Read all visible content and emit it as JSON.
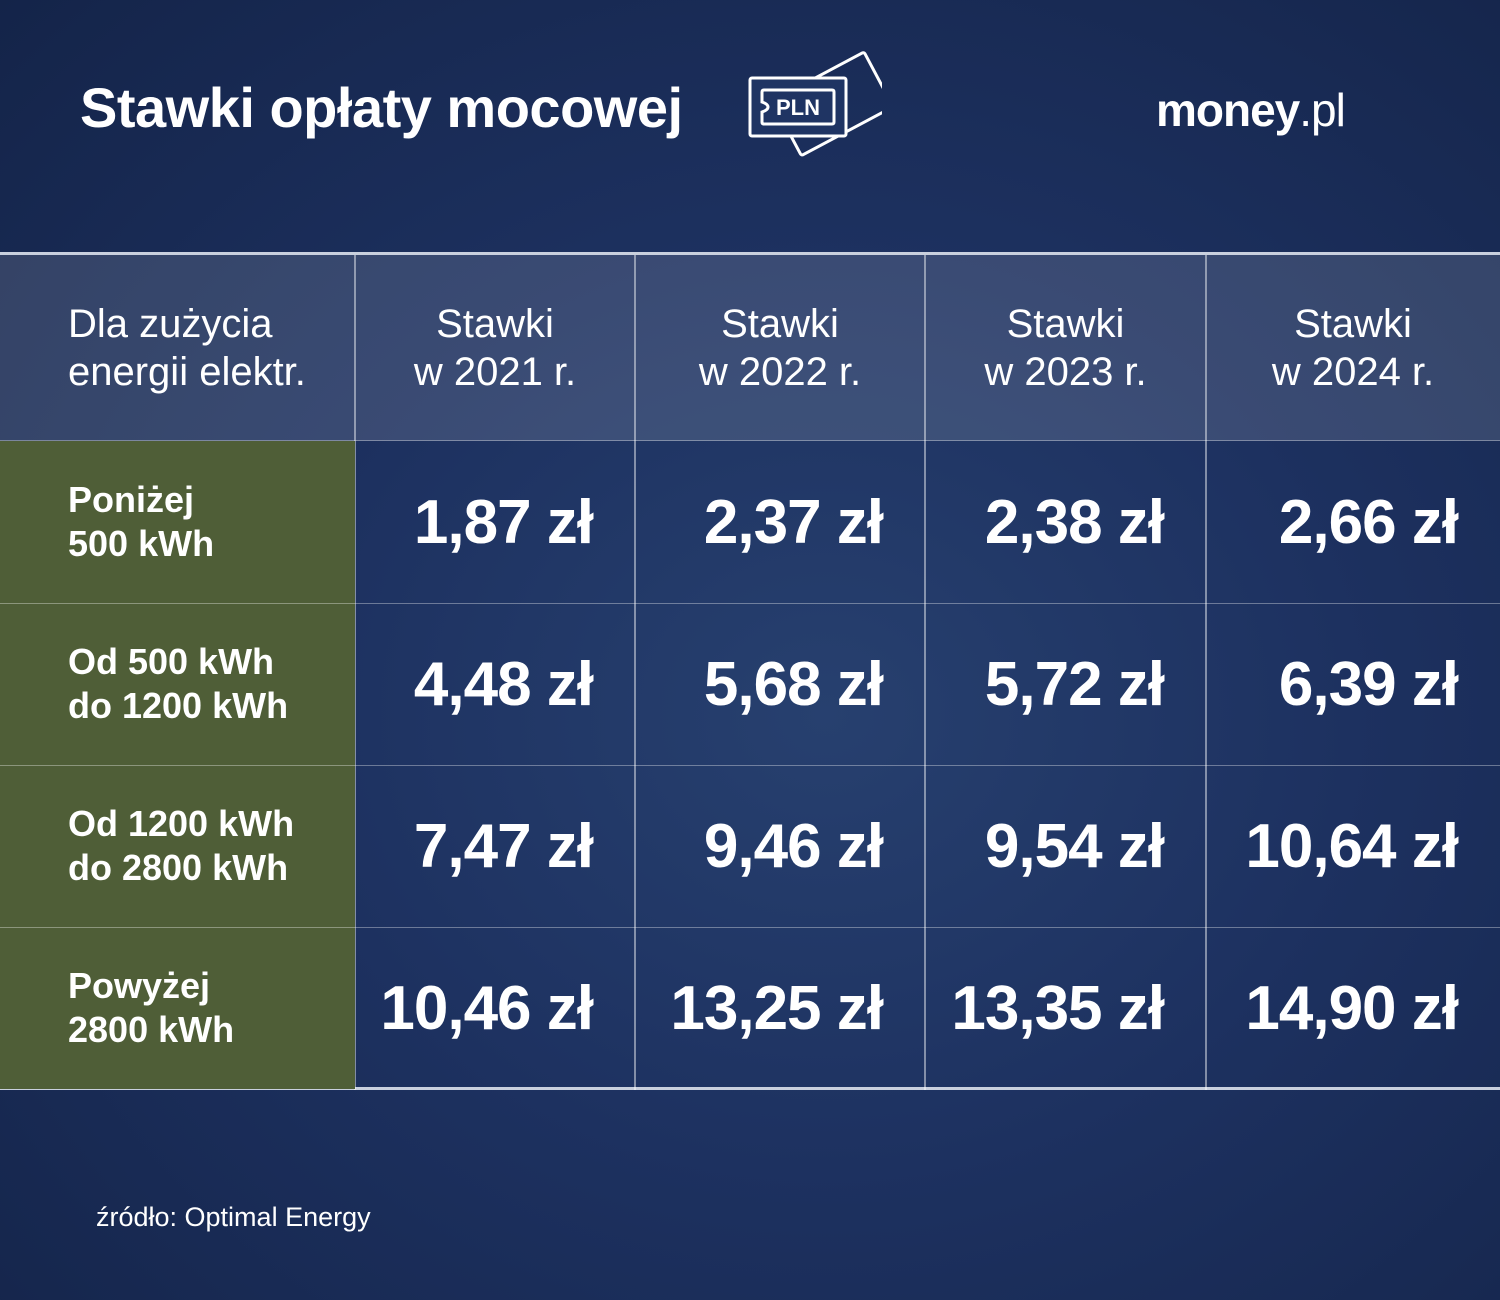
{
  "title": "Stawki opłaty mocowej",
  "icon": "banknote-pln-icon",
  "icon_text": "PLN",
  "logo": {
    "main": "money",
    "tld": ".pl"
  },
  "colors": {
    "background": "#1d3160",
    "row_label_bg": "#4f5e37",
    "text": "#ffffff"
  },
  "source": "źródło: Optimal Energy",
  "chart_data": {
    "type": "table",
    "title": "Stawki opłaty mocowej",
    "header": {
      "first_col": [
        "Dla zużycia",
        "energii elektr."
      ],
      "columns": [
        [
          "Stawki",
          "w 2021 r."
        ],
        [
          "Stawki",
          "w 2022 r."
        ],
        [
          "Stawki",
          "w 2023 r."
        ],
        [
          "Stawki",
          "w 2024 r."
        ]
      ]
    },
    "rows": [
      {
        "label": [
          "Poniżej",
          "500 kWh"
        ],
        "values": [
          "1,87 zł",
          "2,37 zł",
          "2,38 zł",
          "2,66 zł"
        ]
      },
      {
        "label": [
          "Od 500 kWh",
          "do 1200 kWh"
        ],
        "values": [
          "4,48 zł",
          "5,68 zł",
          "5,72 zł",
          "6,39 zł"
        ]
      },
      {
        "label": [
          "Od 1200 kWh",
          "do 2800 kWh"
        ],
        "values": [
          "7,47 zł",
          "9,46 zł",
          "9,54 zł",
          "10,64 zł"
        ]
      },
      {
        "label": [
          "Powyżej",
          "2800 kWh"
        ],
        "values": [
          "10,46 zł",
          "13,25 zł",
          "13,35 zł",
          "14,90 zł"
        ]
      }
    ]
  }
}
